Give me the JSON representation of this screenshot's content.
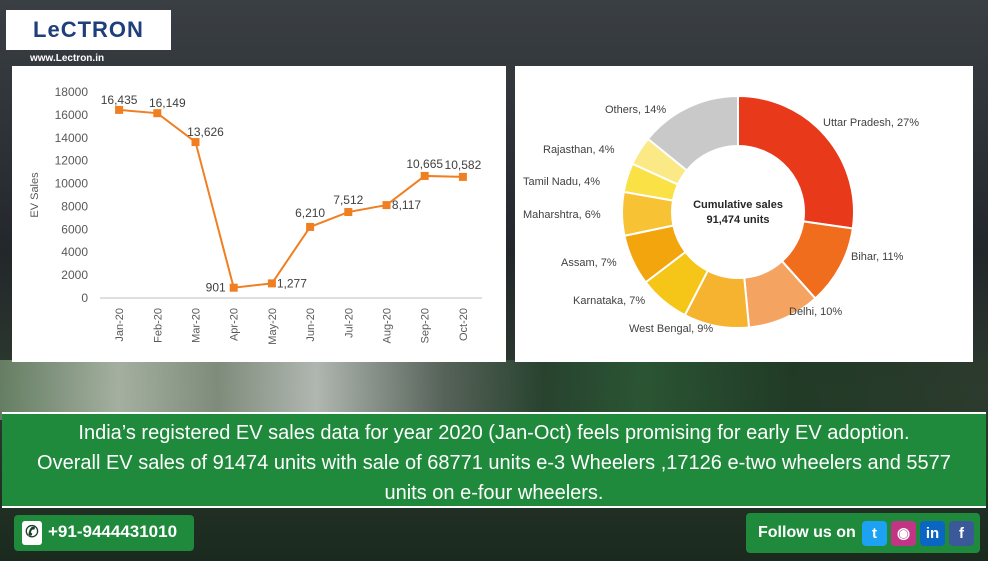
{
  "brand": {
    "logo": "LeCTRON",
    "url": "www.Lectron.in"
  },
  "line_chart": {
    "type": "line",
    "ylabel": "EV Sales",
    "categories": [
      "Jan-20",
      "Feb-20",
      "Mar-20",
      "Apr-20",
      "May-20",
      "Jun-20",
      "Jul-20",
      "Aug-20",
      "Sep-20",
      "Oct-20"
    ],
    "values": [
      16435,
      16149,
      13626,
      901,
      1277,
      6210,
      7512,
      8117,
      10665,
      10582
    ],
    "value_labels": [
      "16,435",
      "16,149",
      "13,626",
      "901",
      "1,277",
      "6,210",
      "7,512",
      "8,117",
      "10,665",
      "10,582"
    ],
    "yticks": [
      "0",
      "2000",
      "4000",
      "6000",
      "8000",
      "10000",
      "12000",
      "14000",
      "16000",
      "18000"
    ],
    "ylim": [
      0,
      18000
    ],
    "color": "#f07f22",
    "grid": false
  },
  "donut_chart": {
    "type": "pie",
    "center_text": [
      "Cumulative sales",
      "91,474 units"
    ],
    "slices": [
      {
        "label": "Uttar Pradesh, 27%",
        "value": 27,
        "color": "#e8391a"
      },
      {
        "label": "Bihar, 11%",
        "value": 11,
        "color": "#ef6d1c"
      },
      {
        "label": "Delhi, 10%",
        "value": 10,
        "color": "#f4a460"
      },
      {
        "label": "West Bengal, 9%",
        "value": 9,
        "color": "#f6b32f"
      },
      {
        "label": "Karnataka, 7%",
        "value": 7,
        "color": "#f5c518"
      },
      {
        "label": "Assam, 7%",
        "value": 7,
        "color": "#f2a50c"
      },
      {
        "label": "Maharshtra, 6%",
        "value": 6,
        "color": "#f7c234"
      },
      {
        "label": "Tamil Nadu, 4%",
        "value": 4,
        "color": "#f9e146"
      },
      {
        "label": "Rajasthan, 4%",
        "value": 4,
        "color": "#fbe986"
      },
      {
        "label": "Others, 14%",
        "value": 14,
        "color": "#c9c9c9"
      }
    ]
  },
  "chart_data": [
    {
      "type": "line",
      "ylabel": "EV Sales",
      "categories": [
        "Jan-20",
        "Feb-20",
        "Mar-20",
        "Apr-20",
        "May-20",
        "Jun-20",
        "Jul-20",
        "Aug-20",
        "Sep-20",
        "Oct-20"
      ],
      "values": [
        16435,
        16149,
        13626,
        901,
        1277,
        6210,
        7512,
        8117,
        10665,
        10582
      ],
      "ylim": [
        0,
        18000
      ]
    },
    {
      "type": "pie",
      "title": "Cumulative sales 91,474 units",
      "categories": [
        "Uttar Pradesh",
        "Bihar",
        "Delhi",
        "West Bengal",
        "Karnataka",
        "Assam",
        "Maharshtra",
        "Tamil Nadu",
        "Rajasthan",
        "Others"
      ],
      "values": [
        27,
        11,
        10,
        9,
        7,
        7,
        6,
        4,
        4,
        14
      ]
    }
  ],
  "banner": {
    "line1": "India’s registered EV sales data for year 2020 (Jan-Oct) feels promising for early EV adoption.",
    "line2": "Overall EV sales of 91474 units with sale of 68771 units e-3 Wheelers ,17126 e-two wheelers and 5577",
    "line3": "units on e-four wheelers."
  },
  "contact": {
    "phone": "+91-9444431010"
  },
  "social": {
    "follow_label": "Follow us on",
    "icons": [
      "twitter-icon",
      "instagram-icon",
      "linkedin-icon",
      "facebook-icon"
    ],
    "colors": {
      "twitter": "#1da1f2",
      "instagram": "#c13584",
      "linkedin": "#0a66c2",
      "facebook": "#3b5998"
    }
  }
}
